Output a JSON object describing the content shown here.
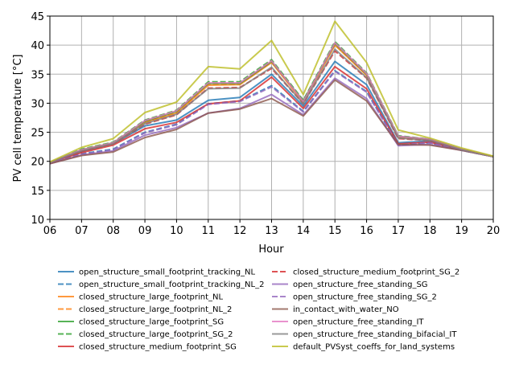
{
  "chart_data": {
    "type": "line",
    "title": "",
    "xlabel": "Hour",
    "ylabel": "PV cell temperature [°C]",
    "x": [
      "06",
      "07",
      "08",
      "09",
      "10",
      "11",
      "12",
      "13",
      "14",
      "15",
      "16",
      "17",
      "18",
      "19",
      "20"
    ],
    "xlim": [
      "06",
      "20"
    ],
    "ylim": [
      10,
      45
    ],
    "yticks": [
      10,
      15,
      20,
      25,
      30,
      35,
      40,
      45
    ],
    "grid": true,
    "legend_placement": "bottom, two columns",
    "series": [
      {
        "name": "open_structure_small_footprint_tracking_NL",
        "color": "#1f77b4",
        "dashed": false,
        "values": [
          19.8,
          21.7,
          23.0,
          26.1,
          27.1,
          30.5,
          31.0,
          35.0,
          29.5,
          37.2,
          33.2,
          23.2,
          23.5,
          22.0,
          20.8
        ]
      },
      {
        "name": "open_structure_small_footprint_tracking_NL_2",
        "color": "#1f77b4",
        "dashed": true,
        "values": [
          19.7,
          21.3,
          22.1,
          25.0,
          26.4,
          29.9,
          30.4,
          33.0,
          28.6,
          35.6,
          32.0,
          22.8,
          23.2,
          21.9,
          20.8
        ]
      },
      {
        "name": "closed_structure_large_footprint_NL",
        "color": "#ff7f0e",
        "dashed": false,
        "values": [
          19.8,
          21.9,
          23.1,
          26.7,
          28.3,
          33.1,
          33.2,
          37.0,
          30.2,
          40.0,
          34.8,
          24.1,
          23.7,
          22.1,
          20.8
        ]
      },
      {
        "name": "closed_structure_large_footprint_NL_2",
        "color": "#ff7f0e",
        "dashed": true,
        "values": [
          19.8,
          21.9,
          23.1,
          26.8,
          28.4,
          33.3,
          33.3,
          37.1,
          30.2,
          40.1,
          34.9,
          24.2,
          23.7,
          22.1,
          20.8
        ]
      },
      {
        "name": "closed_structure_large_footprint_SG",
        "color": "#2ca02c",
        "dashed": false,
        "values": [
          19.8,
          22.0,
          23.2,
          26.9,
          28.6,
          33.4,
          33.4,
          37.2,
          30.4,
          40.3,
          35.0,
          24.3,
          23.8,
          22.1,
          20.8
        ]
      },
      {
        "name": "closed_structure_large_footprint_SG_2",
        "color": "#2ca02c",
        "dashed": true,
        "values": [
          19.8,
          22.1,
          23.3,
          27.1,
          28.8,
          33.7,
          33.7,
          37.5,
          30.5,
          40.6,
          35.2,
          24.4,
          23.8,
          22.1,
          20.8
        ]
      },
      {
        "name": "closed_structure_medium_footprint_SG",
        "color": "#d62728",
        "dashed": false,
        "values": [
          19.8,
          21.5,
          22.8,
          25.6,
          26.7,
          29.9,
          30.4,
          34.5,
          29.1,
          36.3,
          32.5,
          23.0,
          23.3,
          22.0,
          20.8
        ]
      },
      {
        "name": "closed_structure_medium_footprint_SG_2",
        "color": "#d62728",
        "dashed": true,
        "values": [
          19.8,
          21.8,
          23.0,
          26.4,
          28.0,
          32.6,
          32.7,
          36.0,
          29.9,
          39.0,
          34.3,
          23.9,
          23.6,
          22.0,
          20.8
        ]
      },
      {
        "name": "open_structure_free_standing_SG",
        "color": "#9467bd",
        "dashed": false,
        "values": [
          19.6,
          21.1,
          21.8,
          24.5,
          25.8,
          28.3,
          29.1,
          31.5,
          28.0,
          34.3,
          30.8,
          22.7,
          22.9,
          21.9,
          20.8
        ]
      },
      {
        "name": "open_structure_free_standing_SG_2",
        "color": "#9467bd",
        "dashed": true,
        "values": [
          19.7,
          21.2,
          22.0,
          24.9,
          26.3,
          29.8,
          30.3,
          32.8,
          28.5,
          35.5,
          31.9,
          22.8,
          23.2,
          21.9,
          20.8
        ]
      },
      {
        "name": "in_contact_with_water_NO",
        "color": "#8c564b",
        "dashed": false,
        "values": [
          19.6,
          21.0,
          21.6,
          24.1,
          25.5,
          28.3,
          29.0,
          30.8,
          27.8,
          34.0,
          30.4,
          22.9,
          22.8,
          21.9,
          20.8
        ]
      },
      {
        "name": "open_structure_free_standing_IT",
        "color": "#e377c2",
        "dashed": false,
        "values": [
          19.8,
          22.0,
          23.2,
          27.0,
          28.7,
          33.5,
          33.5,
          37.3,
          30.3,
          40.4,
          35.1,
          24.3,
          23.8,
          22.1,
          20.8
        ]
      },
      {
        "name": "open_structure_free_standing_bifacial_IT",
        "color": "#7f7f7f",
        "dashed": false,
        "values": [
          19.8,
          21.8,
          23.0,
          26.5,
          28.1,
          32.5,
          32.6,
          36.2,
          29.9,
          39.3,
          34.4,
          24.0,
          23.6,
          22.0,
          20.8
        ]
      },
      {
        "name": "default_PVSyst_coeffs_for_land_systems",
        "color": "#bcbd22",
        "dashed": false,
        "values": [
          19.9,
          22.4,
          23.9,
          28.4,
          30.2,
          36.3,
          35.9,
          40.8,
          31.5,
          44.1,
          37.0,
          25.4,
          24.0,
          22.3,
          20.9
        ]
      }
    ]
  }
}
